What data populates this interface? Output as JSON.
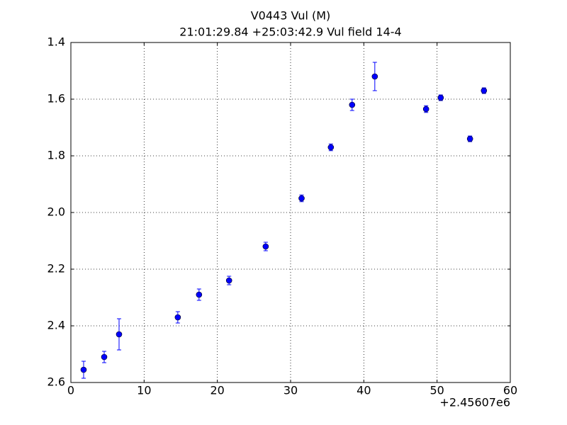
{
  "chart_data": {
    "type": "errorbar",
    "title": "V0443 Vul (M)",
    "subtitle": "21:01:29.84 +25:03:42.9 Vul field 14-4",
    "x_offset_label": "+2.45607e6",
    "x": [
      1.74,
      4.55,
      6.58,
      14.6,
      17.5,
      21.6,
      26.6,
      31.5,
      35.5,
      38.4,
      41.5,
      48.5,
      50.5,
      54.5,
      56.4
    ],
    "values": [
      2.555,
      2.51,
      2.43,
      2.37,
      2.29,
      2.24,
      2.12,
      1.95,
      1.77,
      1.62,
      1.52,
      1.635,
      1.595,
      1.74,
      1.57
    ],
    "errors": [
      0.03,
      0.02,
      0.055,
      0.02,
      0.02,
      0.015,
      0.015,
      0.012,
      0.012,
      0.02,
      0.05,
      0.012,
      0.01,
      0.01,
      0.01
    ],
    "color": "#0000ff",
    "xlim": [
      0,
      60
    ],
    "xticks": [
      0,
      10,
      20,
      30,
      40,
      50,
      60
    ],
    "ylim": [
      2.6,
      1.4
    ],
    "yticks": [
      1.4,
      1.6,
      1.8,
      {
        "value": 2,
        "label": "2.0"
      },
      2.2,
      2.4,
      2.6
    ],
    "grid": true
  }
}
